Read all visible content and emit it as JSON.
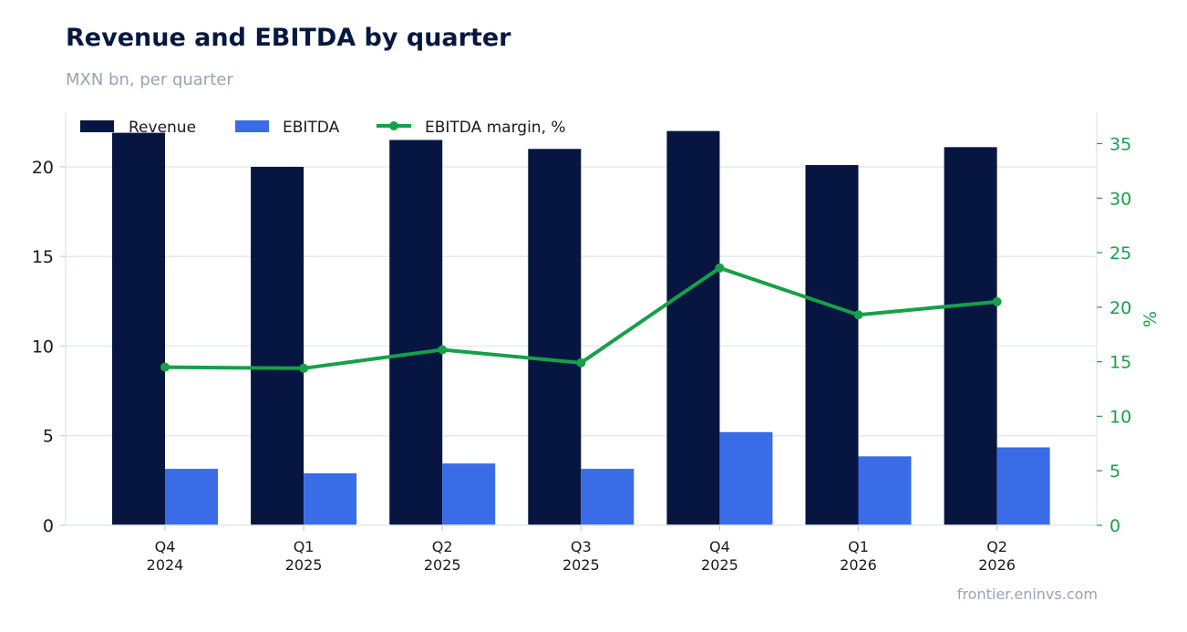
{
  "header": {
    "title": "Revenue and EBITDA by quarter",
    "subtitle": "MXN bn, per quarter"
  },
  "footer": {
    "source": "frontier.eninvs.com"
  },
  "colors": {
    "revenue": "#061640",
    "ebitda": "#3b6ce8",
    "margin": "#16a047",
    "grid": "#e6e9f0",
    "axis_text": "#1a1a1a",
    "right_axis_text": "#16a047"
  },
  "chart_data": {
    "type": "bar",
    "categories": [
      [
        "Q4",
        "2024"
      ],
      [
        "Q1",
        "2025"
      ],
      [
        "Q2",
        "2025"
      ],
      [
        "Q3",
        "2025"
      ],
      [
        "Q4",
        "2025"
      ],
      [
        "Q1",
        "2026"
      ],
      [
        "Q2",
        "2026"
      ]
    ],
    "series": [
      {
        "name": "Revenue",
        "kind": "bar",
        "axis": "left",
        "values": [
          21.9,
          20.0,
          21.5,
          21.0,
          22.0,
          20.1,
          21.1
        ]
      },
      {
        "name": "EBITDA",
        "kind": "bar",
        "axis": "left",
        "values": [
          3.15,
          2.9,
          3.45,
          3.15,
          5.2,
          3.85,
          4.35
        ]
      },
      {
        "name": "EBITDA margin, %",
        "kind": "line",
        "axis": "right",
        "values": [
          14.5,
          14.4,
          16.1,
          14.9,
          23.6,
          19.3,
          20.5
        ]
      }
    ],
    "y_left": {
      "ylim": [
        0,
        23
      ],
      "ticks": [
        0,
        5,
        10,
        15,
        20
      ],
      "label": ""
    },
    "y_right": {
      "ylim": [
        0,
        37.8
      ],
      "ticks": [
        0,
        5,
        10,
        15,
        20,
        25,
        30,
        35
      ],
      "label": "%"
    },
    "grid": true,
    "legend_position": "top-left"
  }
}
